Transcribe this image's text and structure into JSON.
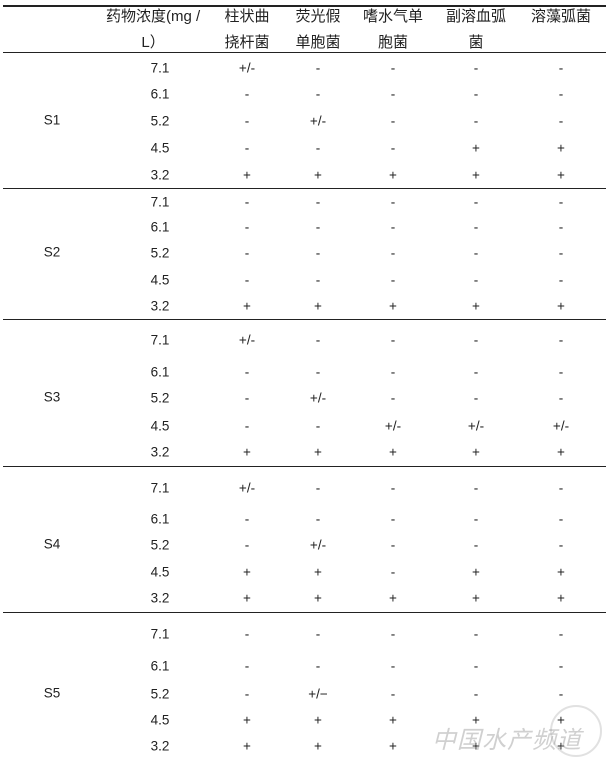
{
  "header": {
    "concentration": [
      "药物浓度(mg /",
      "L）"
    ],
    "columns": [
      [
        "柱状曲",
        "挠杆菌"
      ],
      [
        "荧光假",
        "单胞菌"
      ],
      [
        "嗜水气单",
        "胞菌"
      ],
      [
        "副溶血弧",
        "菌"
      ],
      [
        "溶藻弧菌",
        ""
      ]
    ]
  },
  "groups": [
    {
      "label": "S1",
      "rows": [
        {
          "conc": "7.1",
          "values": [
            "+/-",
            "-",
            "-",
            "-",
            "-"
          ]
        },
        {
          "conc": "6.1",
          "values": [
            "-",
            "-",
            "-",
            "-",
            "-"
          ]
        },
        {
          "conc": "5.2",
          "values": [
            "-",
            "+/-",
            "-",
            "-",
            "-"
          ]
        },
        {
          "conc": "4.5",
          "values": [
            "-",
            "-",
            "-",
            "+",
            "+"
          ]
        },
        {
          "conc": "3.2",
          "values": [
            "+",
            "+",
            "+",
            "+",
            "+"
          ]
        }
      ]
    },
    {
      "label": "S2",
      "rows": [
        {
          "conc": "7.1",
          "values": [
            "-",
            "-",
            "-",
            "-",
            "-"
          ]
        },
        {
          "conc": "6.1",
          "values": [
            "-",
            "-",
            "-",
            "-",
            "-"
          ]
        },
        {
          "conc": "5.2",
          "values": [
            "-",
            "-",
            "-",
            "-",
            "-"
          ]
        },
        {
          "conc": "4.5",
          "values": [
            "-",
            "-",
            "-",
            "-",
            "-"
          ]
        },
        {
          "conc": "3.2",
          "values": [
            "+",
            "+",
            "+",
            "+",
            "+"
          ]
        }
      ]
    },
    {
      "label": "S3",
      "rows": [
        {
          "conc": "7.1",
          "values": [
            "+/-",
            "-",
            "-",
            "-",
            "-"
          ]
        },
        {
          "conc": "6.1",
          "values": [
            "-",
            "-",
            "-",
            "-",
            "-"
          ]
        },
        {
          "conc": "5.2",
          "values": [
            "-",
            "+/-",
            "-",
            "-",
            "-"
          ]
        },
        {
          "conc": "4.5",
          "values": [
            "-",
            "-",
            "+/-",
            "+/-",
            "+/-"
          ]
        },
        {
          "conc": "3.2",
          "values": [
            "+",
            "+",
            "+",
            "+",
            "+"
          ]
        }
      ]
    },
    {
      "label": "S4",
      "rows": [
        {
          "conc": "7.1",
          "values": [
            "+/-",
            "-",
            "-",
            "-",
            "-"
          ]
        },
        {
          "conc": "6.1",
          "values": [
            "-",
            "-",
            "-",
            "-",
            "-"
          ]
        },
        {
          "conc": "5.2",
          "values": [
            "-",
            "+/-",
            "-",
            "-",
            "-"
          ]
        },
        {
          "conc": "4.5",
          "values": [
            "+",
            "+",
            "-",
            "+",
            "+"
          ]
        },
        {
          "conc": "3.2",
          "values": [
            "+",
            "+",
            "+",
            "+",
            "+"
          ]
        }
      ]
    },
    {
      "label": "S5",
      "rows": [
        {
          "conc": "7.1",
          "values": [
            "-",
            "-",
            "-",
            "-",
            "-"
          ]
        },
        {
          "conc": "6.1",
          "values": [
            "-",
            "-",
            "-",
            "-",
            "-"
          ]
        },
        {
          "conc": "5.2",
          "values": [
            "-",
            "+/−",
            "-",
            "-",
            "-"
          ]
        },
        {
          "conc": "4.5",
          "values": [
            "+",
            "+",
            "+",
            "+",
            "+"
          ]
        },
        {
          "conc": "3.2",
          "values": [
            "+",
            "+",
            "+",
            "+",
            "+"
          ]
        }
      ]
    }
  ],
  "watermark": "中国水产频道"
}
